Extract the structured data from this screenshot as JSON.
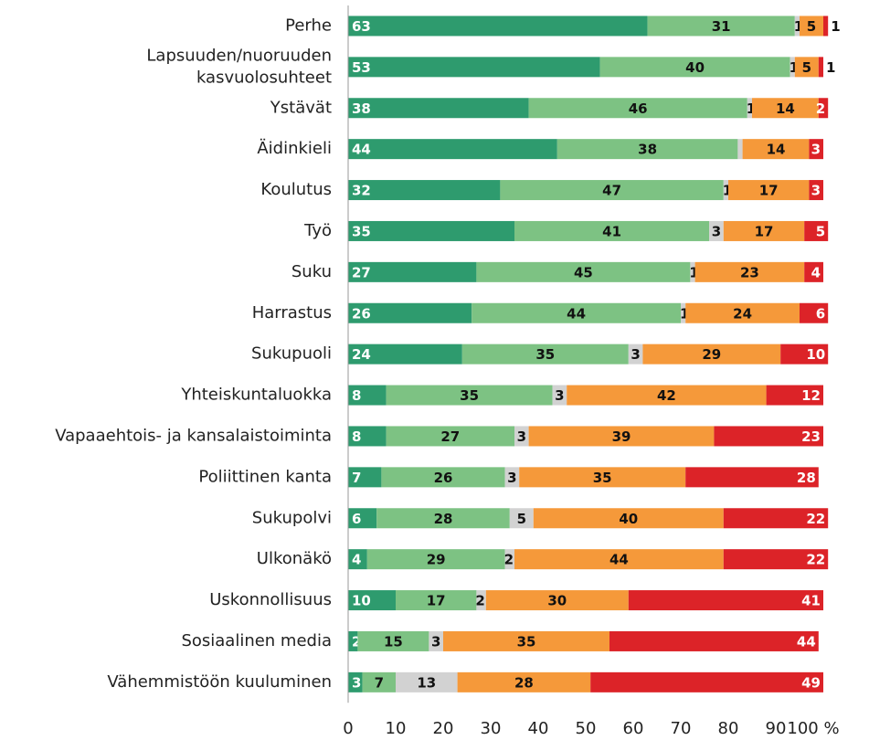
{
  "chart_data": {
    "type": "stacked-bar-horizontal",
    "categories": [
      "Perhe",
      "Lapsuuden/nuoruuden\nkasvuolosuhteet",
      "Ystävät",
      "Äidinkieli",
      "Koulutus",
      "Työ",
      "Suku",
      "Harrastus",
      "Sukupuoli",
      "Yhteiskuntaluokka",
      "Vapaaehtois- ja kansalaistoiminta",
      "Poliittinen kanta",
      "Sukupolvi",
      "Ulkonäkö",
      "Uskonnollisuus",
      "Sosiaalinen media",
      "Vähemmistöön kuuluminen"
    ],
    "series": [
      {
        "color": "#2e9b6e",
        "values": [
          63,
          53,
          38,
          44,
          32,
          35,
          27,
          26,
          24,
          8,
          8,
          7,
          6,
          4,
          10,
          2,
          3
        ]
      },
      {
        "color": "#7dc283",
        "values": [
          31,
          40,
          46,
          38,
          47,
          41,
          45,
          44,
          35,
          35,
          27,
          26,
          28,
          29,
          17,
          15,
          7
        ]
      },
      {
        "color": "#d2d2d2",
        "values": [
          1,
          1,
          1,
          1,
          1,
          3,
          1,
          1,
          3,
          3,
          3,
          3,
          5,
          2,
          2,
          3,
          13
        ],
        "value_labels": [
          "1",
          "1",
          "1",
          null,
          "1",
          "3",
          "1",
          "1",
          "3",
          "3",
          "3",
          "3",
          "5",
          "2",
          "2",
          "3",
          "13"
        ]
      },
      {
        "color": "#f5993a",
        "values": [
          5,
          5,
          14,
          14,
          17,
          17,
          23,
          24,
          29,
          42,
          39,
          35,
          40,
          44,
          30,
          35,
          28
        ]
      },
      {
        "color": "#dc2328",
        "values": [
          1,
          1,
          2,
          3,
          3,
          5,
          4,
          6,
          10,
          12,
          23,
          28,
          22,
          22,
          41,
          44,
          49
        ]
      }
    ],
    "xlim": [
      0,
      100
    ],
    "xticks": [
      0,
      10,
      20,
      30,
      40,
      50,
      60,
      70,
      80,
      90,
      {
        "value": 100,
        "label": "100 %"
      }
    ]
  }
}
